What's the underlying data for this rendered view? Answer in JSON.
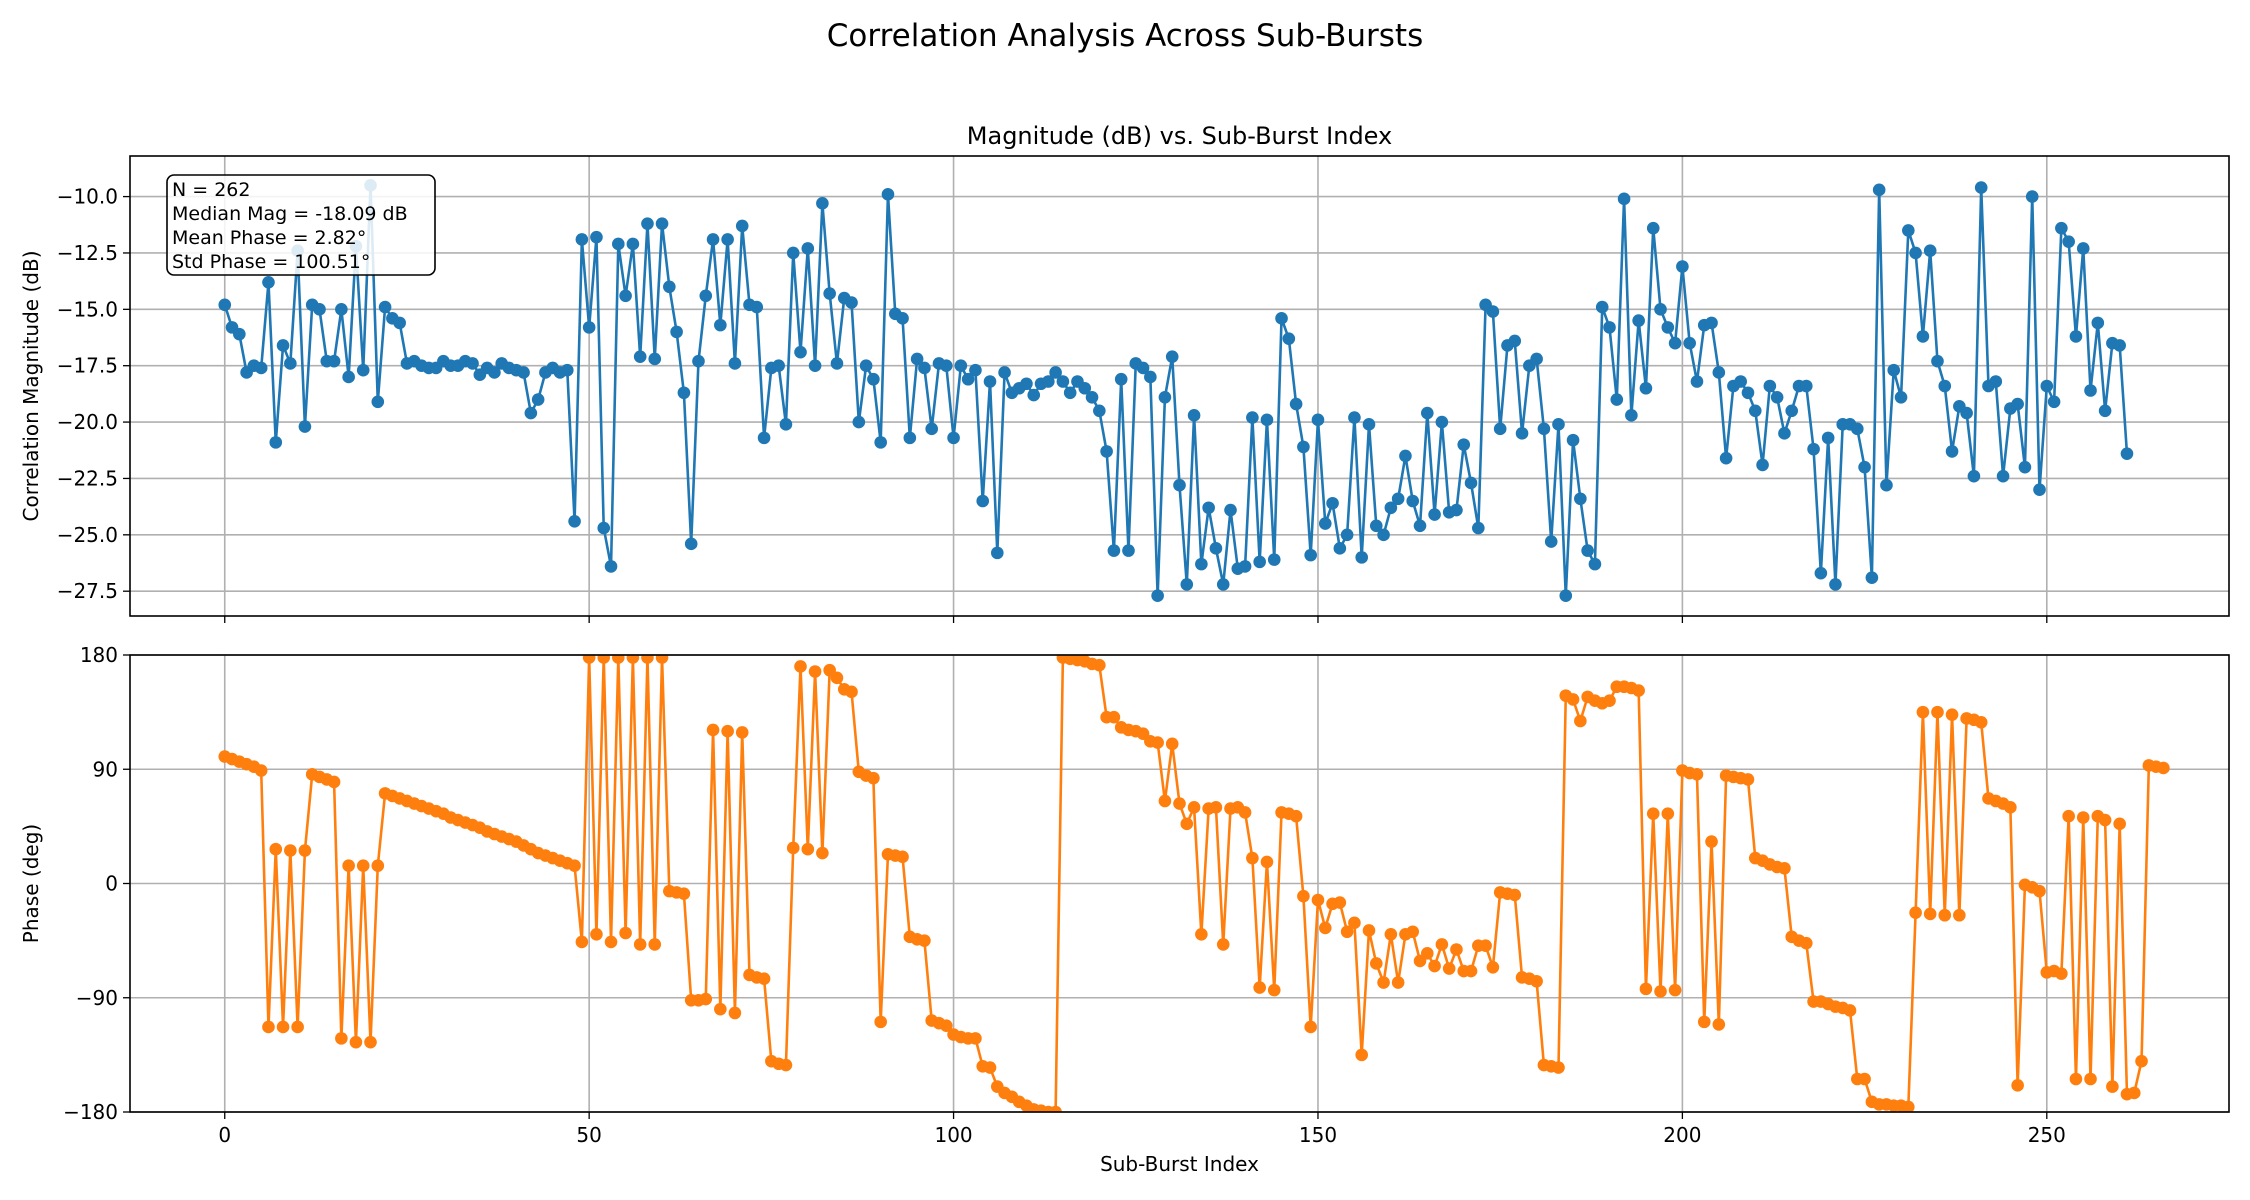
{
  "figure": {
    "title": "Correlation Analysis Across Sub-Bursts"
  },
  "chart_data": [
    {
      "type": "line",
      "title": "Magnitude (dB) vs. Sub-Burst Index",
      "xlabel": "",
      "ylabel": "Correlation Magnitude (dB)",
      "xlim": [
        -13,
        275
      ],
      "ylim": [
        -28.6,
        -8.2
      ],
      "xticks": [
        0,
        50,
        100,
        150,
        200,
        250
      ],
      "xtick_labels": [],
      "yticks": [
        -10.0,
        -12.5,
        -15.0,
        -17.5,
        -20.0,
        -22.5,
        -25.0,
        -27.5
      ],
      "ytick_labels": [
        "−10.0",
        "−12.5",
        "−15.0",
        "−17.5",
        "−20.0",
        "−22.5",
        "−25.0",
        "−27.5"
      ],
      "grid": true,
      "color": "#1f77b4",
      "annotation": [
        "N = 262",
        "Median Mag = -18.09 dB",
        "Mean Phase = 2.82°",
        "Std Phase = 100.51°"
      ],
      "x_start": 0,
      "values": [
        -14.8,
        -15.8,
        -16.1,
        -17.8,
        -17.5,
        -17.6,
        -13.8,
        -20.9,
        -16.6,
        -17.4,
        -12.4,
        -20.2,
        -14.8,
        -15.0,
        -17.3,
        -17.3,
        -15.0,
        -18.0,
        -12.2,
        -17.7,
        -9.5,
        -19.1,
        -14.9,
        -15.4,
        -15.6,
        -17.4,
        -17.3,
        -17.5,
        -17.6,
        -17.6,
        -17.3,
        -17.5,
        -17.5,
        -17.3,
        -17.4,
        -17.9,
        -17.6,
        -17.8,
        -17.4,
        -17.6,
        -17.7,
        -17.8,
        -19.6,
        -19.0,
        -17.8,
        -17.6,
        -17.8,
        -17.7,
        -24.4,
        -11.9,
        -15.8,
        -11.8,
        -24.7,
        -26.4,
        -12.1,
        -14.4,
        -12.1,
        -17.1,
        -11.2,
        -17.2,
        -11.2,
        -14.0,
        -16.0,
        -18.7,
        -25.4,
        -17.3,
        -14.4,
        -11.9,
        -15.7,
        -11.9,
        -17.4,
        -11.3,
        -14.8,
        -14.9,
        -20.7,
        -17.6,
        -17.5,
        -20.1,
        -12.5,
        -16.9,
        -12.3,
        -17.5,
        -10.3,
        -14.3,
        -17.4,
        -14.5,
        -14.7,
        -20.0,
        -17.5,
        -18.1,
        -20.9,
        -9.9,
        -15.2,
        -15.4,
        -20.7,
        -17.2,
        -17.6,
        -20.3,
        -17.4,
        -17.5,
        -20.7,
        -17.5,
        -18.1,
        -17.7,
        -23.5,
        -18.2,
        -25.8,
        -17.8,
        -18.7,
        -18.5,
        -18.3,
        -18.8,
        -18.3,
        -18.2,
        -17.8,
        -18.2,
        -18.7,
        -18.2,
        -18.5,
        -18.9,
        -19.5,
        -21.3,
        -25.7,
        -18.1,
        -25.7,
        -17.4,
        -17.6,
        -18.0,
        -27.7,
        -18.9,
        -17.1,
        -22.8,
        -27.2,
        -19.7,
        -26.3,
        -23.8,
        -25.6,
        -27.2,
        -23.9,
        -26.5,
        -26.4,
        -19.8,
        -26.2,
        -19.9,
        -26.1,
        -15.4,
        -16.3,
        -19.2,
        -21.1,
        -25.9,
        -19.9,
        -24.5,
        -23.6,
        -25.6,
        -25.0,
        -19.8,
        -26.0,
        -20.1,
        -24.6,
        -25.0,
        -23.8,
        -23.4,
        -21.5,
        -23.5,
        -24.6,
        -19.6,
        -24.1,
        -20.0,
        -24.0,
        -23.9,
        -21.0,
        -22.7,
        -24.7,
        -14.8,
        -15.1,
        -20.3,
        -16.6,
        -16.4,
        -20.5,
        -17.5,
        -17.2,
        -20.3,
        -25.3,
        -20.1,
        -27.7,
        -20.8,
        -23.4,
        -25.7,
        -26.3,
        -14.9,
        -15.8,
        -19.0,
        -10.1,
        -19.7,
        -15.5,
        -18.5,
        -11.4,
        -15.0,
        -15.8,
        -16.5,
        -13.1,
        -16.5,
        -18.2,
        -15.7,
        -15.6,
        -17.8,
        -21.6,
        -18.4,
        -18.2,
        -18.7,
        -19.5,
        -21.9,
        -18.4,
        -18.9,
        -20.5,
        -19.5,
        -18.4,
        -18.4,
        -21.2,
        -26.7,
        -20.7,
        -27.2,
        -20.1,
        -20.1,
        -20.3,
        -22.0,
        -26.9,
        -9.7,
        -22.8,
        -17.7,
        -18.9,
        -11.5,
        -12.5,
        -16.2,
        -12.4,
        -17.3,
        -18.4,
        -21.3,
        -19.3,
        -19.6,
        -22.4,
        -9.6,
        -18.4,
        -18.2,
        -22.4,
        -19.4,
        -19.2,
        -22.0,
        -10.0,
        -23.0,
        -18.4,
        -19.1,
        -11.4,
        -12.0,
        -16.2,
        -12.3,
        -18.6,
        -15.6,
        -19.5,
        -16.5,
        -16.6,
        -21.4
      ]
    },
    {
      "type": "line",
      "title": "",
      "xlabel": "Sub-Burst Index",
      "ylabel": "Phase (deg)",
      "xlim": [
        -13,
        275
      ],
      "ylim": [
        -180,
        180
      ],
      "xticks": [
        0,
        50,
        100,
        150,
        200,
        250
      ],
      "xtick_labels": [
        "0",
        "50",
        "100",
        "150",
        "200",
        "250"
      ],
      "yticks": [
        180,
        90,
        0,
        -90,
        -180
      ],
      "ytick_labels": [
        "180",
        "90",
        "0",
        "−90",
        "−180"
      ],
      "grid": true,
      "color": "#ff7f0e",
      "x_start": 0,
      "values": [
        100,
        98,
        96,
        94,
        92,
        89,
        -113,
        27,
        -113,
        26,
        -113,
        26,
        86,
        84,
        82,
        80,
        -122,
        14,
        -125,
        14,
        -125,
        14,
        71,
        69,
        67,
        65,
        63,
        61,
        59,
        57,
        55,
        52,
        50,
        48,
        46,
        44,
        41,
        39,
        37,
        35,
        33,
        30,
        27,
        24,
        22,
        20,
        18,
        16,
        14,
        -46,
        178,
        -40,
        178,
        -46,
        178,
        -39,
        178,
        -48,
        178,
        -48,
        178,
        -6,
        -7,
        -8,
        -92,
        -92,
        -91,
        121,
        -99,
        120,
        -102,
        119,
        -72,
        -74,
        -75,
        -140,
        -142,
        -143,
        28,
        171,
        27,
        167,
        24,
        168,
        162,
        153,
        151,
        88,
        85,
        83,
        -109,
        23,
        22,
        21,
        -42,
        -44,
        -45,
        -108,
        -110,
        -112,
        -119,
        -121,
        -122,
        -122,
        -144,
        -145,
        -160,
        -165,
        -168,
        -172,
        -175,
        -178,
        -179,
        -180,
        -180,
        178,
        177,
        176,
        175,
        173,
        172,
        131,
        131,
        123,
        121,
        120,
        118,
        112,
        111,
        65,
        110,
        63,
        47,
        60,
        -40,
        59,
        60,
        -48,
        59,
        60,
        56,
        20,
        -82,
        17,
        -84,
        56,
        55,
        53,
        -10,
        -113,
        -13,
        -35,
        -16,
        -15,
        -38,
        -31,
        -135,
        -37,
        -63,
        -78,
        -40,
        -78,
        -40,
        -38,
        -61,
        -55,
        -65,
        -48,
        -67,
        -52,
        -69,
        -69,
        -49,
        -49,
        -66,
        -7,
        -8,
        -9,
        -74,
        -75,
        -77,
        -143,
        -144,
        -145,
        148,
        145,
        128,
        147,
        144,
        142,
        144,
        155,
        155,
        154,
        152,
        -83,
        55,
        -85,
        55,
        -84,
        89,
        87,
        86,
        -109,
        33,
        -111,
        85,
        84,
        83,
        82,
        20,
        18,
        15,
        13,
        12,
        -42,
        -45,
        -47,
        -93,
        -93,
        -95,
        -97,
        -98,
        -100,
        -154,
        -154,
        -172,
        -174,
        -174,
        -175,
        -175,
        -176,
        -23,
        135,
        -24,
        135,
        -25,
        133,
        -25,
        130,
        129,
        127,
        67,
        65,
        63,
        60,
        -159,
        -1,
        -3,
        -6,
        -70,
        -69,
        -71,
        53,
        -154,
        52,
        -154,
        53,
        50,
        -160,
        47,
        -166,
        -165,
        -140,
        93,
        92,
        91
      ]
    }
  ]
}
